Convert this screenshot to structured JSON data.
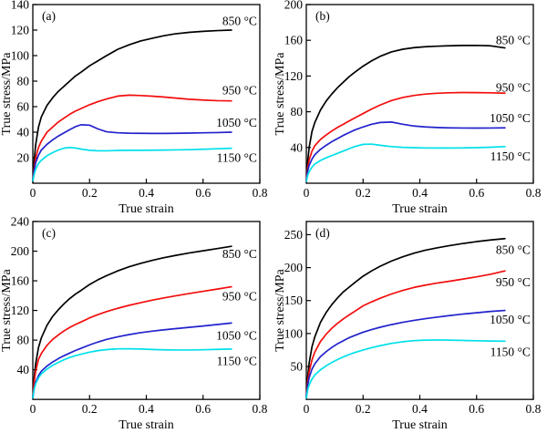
{
  "figure": {
    "background": "#ffffff",
    "axis_color": "#000000"
  },
  "chart_data": [
    {
      "type": "line",
      "panel_label": "(a)",
      "xlabel": "True strain",
      "ylabel": "True stress/MPa",
      "xlim": [
        0,
        0.8
      ],
      "xticks": [
        0,
        0.2,
        0.4,
        0.6,
        0.8
      ],
      "ylim": [
        0,
        140
      ],
      "yticks": [
        20,
        40,
        60,
        80,
        100,
        120,
        140
      ],
      "grid": false,
      "x": [
        0,
        0.005,
        0.01,
        0.02,
        0.03,
        0.05,
        0.07,
        0.09,
        0.11,
        0.13,
        0.15,
        0.17,
        0.2,
        0.23,
        0.26,
        0.3,
        0.34,
        0.38,
        0.42,
        0.46,
        0.5,
        0.55,
        0.6,
        0.65,
        0.7
      ],
      "series": [
        {
          "name": "850 °C",
          "color": "#000000",
          "label_x": 0.79,
          "label_y": 127,
          "values": [
            2,
            18,
            30,
            44,
            52,
            61,
            67,
            72,
            76,
            80,
            84,
            87,
            92,
            96,
            100,
            105,
            108.5,
            111.5,
            113.5,
            115.5,
            117,
            118.2,
            119,
            119.6,
            120
          ]
        },
        {
          "name": "950 °C",
          "color": "#f20d0d",
          "label_x": 0.79,
          "label_y": 73,
          "values": [
            2,
            12,
            20,
            28,
            33,
            40,
            44,
            48,
            51,
            54,
            56.5,
            58.5,
            61.5,
            64,
            66,
            68.3,
            69,
            68.7,
            68.2,
            67.6,
            66.8,
            65.8,
            65.2,
            64.7,
            64.5
          ]
        },
        {
          "name": "1050 °C",
          "color": "#2222cc",
          "label_x": 0.79,
          "label_y": 47.5,
          "values": [
            2,
            10,
            16,
            22,
            26,
            30.5,
            34,
            37,
            39.5,
            42,
            44.3,
            45.8,
            45.5,
            42.5,
            40.3,
            39.5,
            39.2,
            39.1,
            39,
            39,
            39.1,
            39.3,
            39.5,
            39.7,
            40
          ]
        },
        {
          "name": "1150 °C",
          "color": "#00e0ea",
          "label_x": 0.79,
          "label_y": 20,
          "values": [
            2,
            7,
            11,
            15.5,
            18,
            21.5,
            24,
            26,
            27.5,
            28,
            27.6,
            26.8,
            25.8,
            25.4,
            25.4,
            25.7,
            25.8,
            25.8,
            25.9,
            26,
            26.1,
            26.3,
            26.6,
            27,
            27.4
          ]
        }
      ]
    },
    {
      "type": "line",
      "panel_label": "(b)",
      "xlabel": "True strain",
      "ylabel": "True stress/MPa",
      "xlim": [
        0,
        0.8
      ],
      "xticks": [
        0,
        0.2,
        0.4,
        0.6,
        0.8
      ],
      "ylim": [
        0,
        200
      ],
      "yticks": [
        40,
        80,
        120,
        160,
        200
      ],
      "grid": false,
      "x": [
        0,
        0.005,
        0.01,
        0.02,
        0.03,
        0.05,
        0.07,
        0.09,
        0.11,
        0.13,
        0.15,
        0.17,
        0.2,
        0.23,
        0.26,
        0.3,
        0.34,
        0.38,
        0.42,
        0.46,
        0.5,
        0.55,
        0.6,
        0.65,
        0.7
      ],
      "series": [
        {
          "name": "850 °C",
          "color": "#000000",
          "label_x": 0.79,
          "label_y": 160,
          "values": [
            2,
            25,
            40,
            58,
            68,
            82,
            92,
            100,
            107,
            113,
            119,
            124,
            131,
            137,
            142,
            147,
            150,
            151.8,
            152.8,
            153.4,
            153.8,
            154.2,
            154.3,
            153.8,
            151.5
          ]
        },
        {
          "name": "950 °C",
          "color": "#f20d0d",
          "label_x": 0.79,
          "label_y": 107,
          "values": [
            2,
            18,
            26,
            36,
            42,
            49,
            54,
            58.5,
            62.5,
            66,
            69.5,
            73,
            78,
            83,
            87.5,
            92.5,
            96,
            98.3,
            99.8,
            100.7,
            101.2,
            101.5,
            101.4,
            101.2,
            100.8
          ]
        },
        {
          "name": "1050 °C",
          "color": "#2222cc",
          "label_x": 0.79,
          "label_y": 73,
          "values": [
            2,
            14,
            20,
            27,
            32,
            38,
            42.5,
            46.5,
            50,
            53.5,
            56.5,
            59.5,
            63,
            66,
            68,
            68.5,
            66,
            64,
            63,
            62.4,
            62,
            61.8,
            61.7,
            61.8,
            62
          ]
        },
        {
          "name": "1150 °C",
          "color": "#00e0ea",
          "label_x": 0.79,
          "label_y": 30,
          "values": [
            2,
            9,
            13,
            18,
            21.5,
            25.5,
            28.5,
            31,
            33.5,
            36,
            38.5,
            41,
            43.5,
            43.8,
            42.5,
            41,
            40.2,
            39.8,
            39.5,
            39.4,
            39.4,
            39.5,
            39.8,
            40.3,
            41
          ]
        }
      ]
    },
    {
      "type": "line",
      "panel_label": "(c)",
      "xlabel": "True strain",
      "ylabel": "True stress/MPa",
      "xlim": [
        0,
        0.8
      ],
      "xticks": [
        0,
        0.2,
        0.4,
        0.6,
        0.8
      ],
      "ylim": [
        0,
        240
      ],
      "yticks": [
        40,
        80,
        120,
        160,
        200,
        240
      ],
      "grid": false,
      "x": [
        0,
        0.005,
        0.01,
        0.02,
        0.03,
        0.05,
        0.07,
        0.09,
        0.11,
        0.13,
        0.15,
        0.17,
        0.2,
        0.23,
        0.26,
        0.3,
        0.34,
        0.38,
        0.42,
        0.46,
        0.5,
        0.55,
        0.6,
        0.65,
        0.7
      ],
      "series": [
        {
          "name": "850 °C",
          "color": "#000000",
          "label_x": 0.79,
          "label_y": 196,
          "values": [
            2,
            30,
            48,
            70,
            83,
            100,
            112,
            121,
            129,
            136,
            142,
            147,
            155,
            161.5,
            167,
            173.5,
            179,
            183.5,
            187.5,
            191,
            194,
            197.5,
            200.5,
            203.5,
            206.5
          ]
        },
        {
          "name": "950 °C",
          "color": "#f20d0d",
          "label_x": 0.79,
          "label_y": 139,
          "values": [
            2,
            24,
            38,
            54,
            62,
            73,
            81,
            87,
            92.5,
            97,
            101,
            104.5,
            110,
            114.5,
            118.5,
            123,
            127,
            130.5,
            133.8,
            136.8,
            139.5,
            142.8,
            145.8,
            148.8,
            152
          ]
        },
        {
          "name": "1050 °C",
          "color": "#2222cc",
          "label_x": 0.79,
          "label_y": 86,
          "values": [
            2,
            15,
            23,
            32,
            38,
            45,
            50.5,
            55,
            59,
            62.5,
            66,
            69,
            73.5,
            77.5,
            81,
            84.5,
            87.5,
            90,
            92,
            93.8,
            95.3,
            97.2,
            99,
            101,
            103
          ]
        },
        {
          "name": "1150 °C",
          "color": "#00e0ea",
          "label_x": 0.79,
          "label_y": 52,
          "values": [
            2,
            14,
            21,
            29,
            34.5,
            41,
            46,
            50,
            53.5,
            56.5,
            59,
            61,
            63.8,
            65.8,
            67.2,
            68.2,
            68.3,
            68,
            67.4,
            66.9,
            66.7,
            66.7,
            67,
            67.5,
            68
          ]
        }
      ]
    },
    {
      "type": "line",
      "panel_label": "(d)",
      "xlabel": "True strain",
      "ylabel": "True stress/MPa",
      "xlim": [
        0,
        0.8
      ],
      "xticks": [
        0,
        0.2,
        0.4,
        0.6,
        0.8
      ],
      "ylim": [
        0,
        270
      ],
      "yticks": [
        50,
        100,
        150,
        200,
        250
      ],
      "grid": false,
      "x": [
        0,
        0.005,
        0.01,
        0.02,
        0.03,
        0.05,
        0.07,
        0.09,
        0.11,
        0.13,
        0.15,
        0.17,
        0.2,
        0.23,
        0.26,
        0.3,
        0.34,
        0.38,
        0.42,
        0.46,
        0.5,
        0.55,
        0.6,
        0.65,
        0.7
      ],
      "series": [
        {
          "name": "850 °C",
          "color": "#000000",
          "label_x": 0.79,
          "label_y": 227,
          "values": [
            2,
            35,
            55,
            80,
            95,
            117,
            132,
            144,
            154,
            163,
            170,
            177,
            187,
            195,
            202,
            210,
            216.5,
            222,
            226.5,
            230,
            233,
            236.5,
            239.5,
            242,
            244
          ]
        },
        {
          "name": "950 °C",
          "color": "#f20d0d",
          "label_x": 0.79,
          "label_y": 178,
          "values": [
            2,
            28,
            42,
            60,
            72,
            88,
            99,
            108,
            115.5,
            122,
            128,
            133.5,
            142,
            148,
            153.5,
            160,
            165.5,
            170,
            173.5,
            176.5,
            179,
            182.5,
            186,
            190,
            195
          ]
        },
        {
          "name": "1050 °C",
          "color": "#2222cc",
          "label_x": 0.79,
          "label_y": 121,
          "values": [
            2,
            22,
            33,
            46,
            54,
            65,
            72.5,
            79,
            84.5,
            89,
            93.5,
            97,
            102,
            106,
            109.5,
            113.5,
            117,
            120,
            122.5,
            124.8,
            127,
            129.5,
            131.5,
            133.5,
            135
          ]
        },
        {
          "name": "1150 °C",
          "color": "#00e0ea",
          "label_x": 0.79,
          "label_y": 72,
          "values": [
            2,
            15,
            22,
            31,
            37,
            45,
            51,
            56,
            60.5,
            64.5,
            68,
            71,
            75,
            78.5,
            81.5,
            85,
            87.5,
            89.2,
            90,
            90.2,
            90,
            89.5,
            89,
            88.6,
            88.3
          ]
        }
      ]
    }
  ]
}
